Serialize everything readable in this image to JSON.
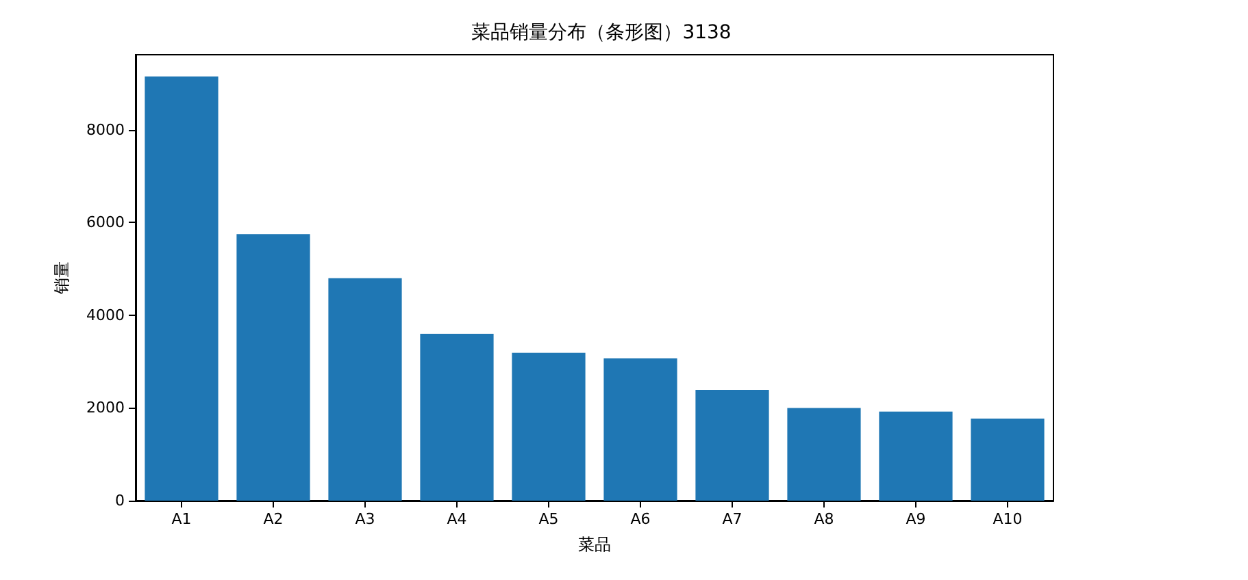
{
  "chart_data": {
    "type": "bar",
    "title": "菜品销量分布（条形图）3138",
    "xlabel": "菜品",
    "ylabel": "销量",
    "categories": [
      "A1",
      "A2",
      "A3",
      "A4",
      "A5",
      "A6",
      "A7",
      "A8",
      "A9",
      "A10"
    ],
    "values": [
      9150,
      5750,
      4800,
      3600,
      3190,
      3070,
      2390,
      2000,
      1920,
      1770
    ],
    "color": "#1f77b4",
    "ylim": [
      0,
      9620
    ],
    "yticks": [
      0,
      2000,
      4000,
      6000,
      8000
    ],
    "grid": false
  }
}
